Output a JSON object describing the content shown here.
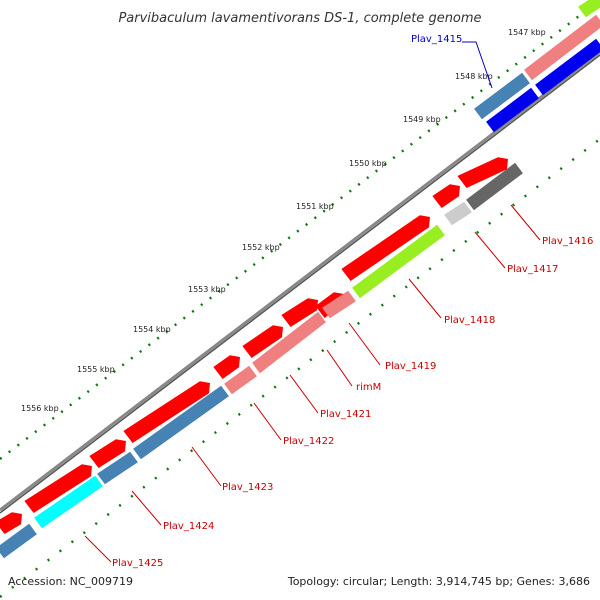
{
  "title": "Parvibaculum lavamentivorans DS-1, complete genome",
  "accession": "Accession: NC_009719",
  "summary": "Topology: circular; Length: 3,914,745 bp; Genes: 3,686",
  "ticks": [
    "1547 kbp",
    "1548 kbp",
    "1549 kbp",
    "1550 kbp",
    "1551 kbp",
    "1552 kbp",
    "1553 kbp",
    "1554 kbp",
    "1555 kbp",
    "1556 kbp"
  ],
  "genes": [
    "Plav_1415",
    "Plav_1416",
    "Plav_1417",
    "Plav_1418",
    "Plav_1419",
    "rimM",
    "Plav_1421",
    "Plav_1422",
    "Plav_1423",
    "Plav_1424",
    "Plav_1425"
  ],
  "colors": {
    "cds": "#ff0000",
    "cog_steel": "#4682b4",
    "cog_salmon": "#f08080",
    "cog_blue": "#0000ee",
    "cog_green": "#99ee22",
    "cog_gray": "#666666",
    "cog_lightgray": "#cccccc",
    "cog_cyan": "#00ffff",
    "backbone": "#888888",
    "tick": "#117711",
    "label_red": "#cc0000",
    "label_blue": "#0000cc"
  }
}
